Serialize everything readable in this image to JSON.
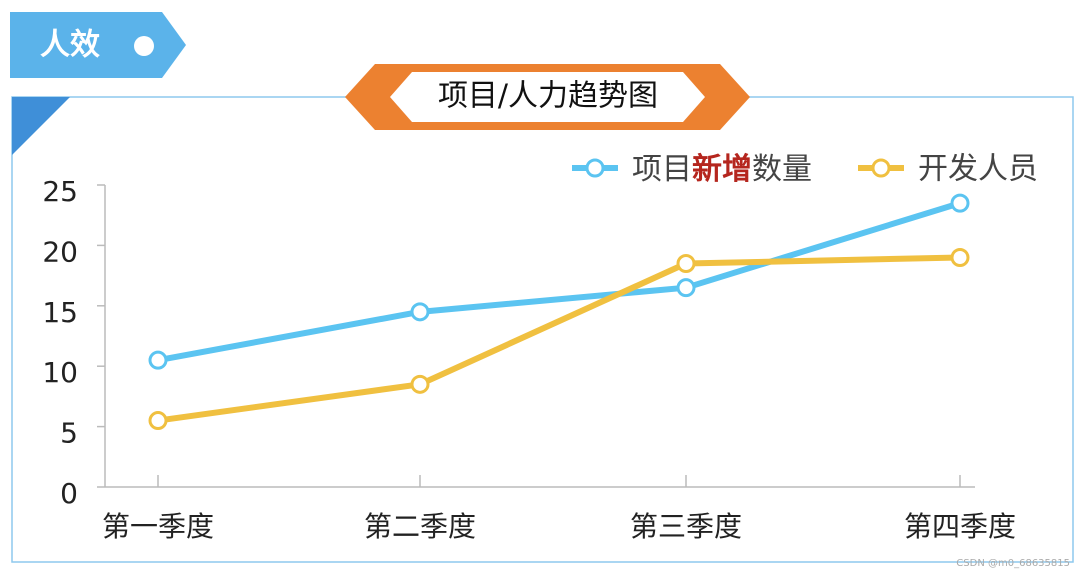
{
  "tab_label": "人效",
  "watermark": "CSDN @m0_68635815",
  "chart_data": {
    "type": "line",
    "title": "项目/人力趋势图",
    "categories": [
      "第一季度",
      "第二季度",
      "第三季度",
      "第四季度"
    ],
    "series": [
      {
        "name": "项目新增数量",
        "highlight": "新增",
        "highlight_color": "#b5261e",
        "color": "#5bc4f1",
        "values": [
          10.5,
          14.5,
          16.5,
          23.5
        ]
      },
      {
        "name": "开发人员",
        "color": "#f0c040",
        "values": [
          5.5,
          8.5,
          18.5,
          19
        ]
      }
    ],
    "ylim": [
      0,
      25
    ],
    "yticks": [
      0,
      5,
      10,
      15,
      20,
      25
    ],
    "legend": "top-right"
  }
}
